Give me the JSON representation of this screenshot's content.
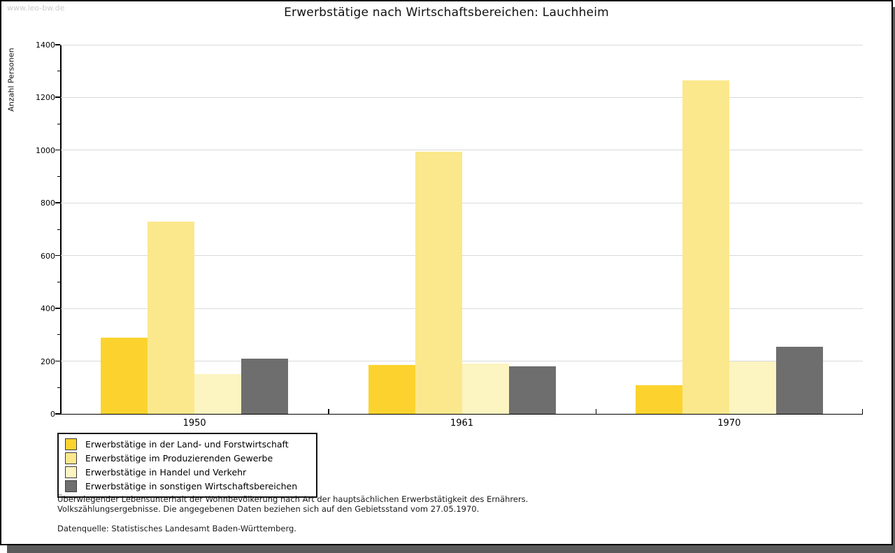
{
  "watermark": "www.leo-bw.de",
  "title": "Erwerbstätige nach Wirtschaftsbereichen: Lauchheim",
  "footnotes": {
    "line1": "Überwiegender Lebensunterhalt der Wohnbevölkerung nach Art der hauptsächlichen Erwerbstätigkeit des Ernährers.",
    "line2": "Volkszählungsergebnisse. Die angegebenen Daten beziehen sich auf den Gebietsstand vom 27.05.1970.",
    "source": "Datenquelle: Statistisches Landesamt Baden-Württemberg."
  },
  "colors": {
    "land_forstwirtschaft": "#fcd32e",
    "produzierendes_gewerbe": "#fbe88c",
    "handel_verkehr": "#fcf4c1",
    "sonstige": "#6e6e6e",
    "gridline": "#d9d9d9",
    "axis": "#000000",
    "watermark": "#cccccc",
    "frame_shadow": "#5b5b5b"
  },
  "chart_data": {
    "type": "bar",
    "title": "Erwerbstätige nach Wirtschaftsbereichen: Lauchheim",
    "xlabel": "",
    "ylabel": "Anzahl Personen",
    "categories": [
      "1950",
      "1961",
      "1970"
    ],
    "series": [
      {
        "name": "Erwerbstätige in der Land- und Forstwirtschaft",
        "color": "#fcd32e",
        "values": [
          290,
          185,
          110
        ]
      },
      {
        "name": "Erwerbstätige im Produzierenden Gewerbe",
        "color": "#fbe88c",
        "values": [
          730,
          995,
          1265
        ]
      },
      {
        "name": "Erwerbstätige in Handel und Verkehr",
        "color": "#fcf4c1",
        "values": [
          150,
          190,
          200
        ]
      },
      {
        "name": "Erwerbstätige in sonstigen Wirtschaftsbereichen",
        "color": "#6e6e6e",
        "values": [
          210,
          180,
          255
        ]
      }
    ],
    "ylim": [
      0,
      1400
    ],
    "ytick_step": 200,
    "yminor_step": 100,
    "grid": "horizontal-major",
    "legend_position": "bottom-left"
  }
}
